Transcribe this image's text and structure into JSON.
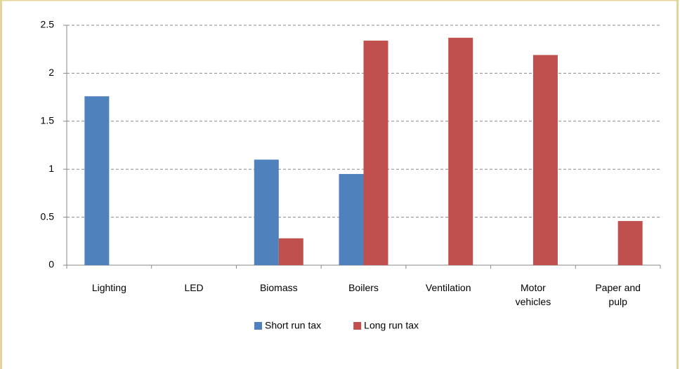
{
  "chart_data": {
    "type": "bar",
    "categories": [
      "Lighting",
      "LED",
      "Biomass",
      "Boilers",
      "Ventilation",
      "Motor vehicles",
      "Paper and pulp"
    ],
    "series": [
      {
        "name": "Short run tax",
        "color": "#4f81bd",
        "values": [
          1.76,
          null,
          1.1,
          0.95,
          null,
          null,
          null
        ]
      },
      {
        "name": "Long run tax",
        "color": "#c0504d",
        "values": [
          null,
          null,
          0.28,
          2.34,
          2.37,
          2.19,
          0.46
        ]
      }
    ],
    "ylim": [
      0,
      2.5
    ],
    "yticks": [
      0,
      0.5,
      1,
      1.5,
      2,
      2.5
    ],
    "grid": true,
    "legend": "bottom"
  }
}
